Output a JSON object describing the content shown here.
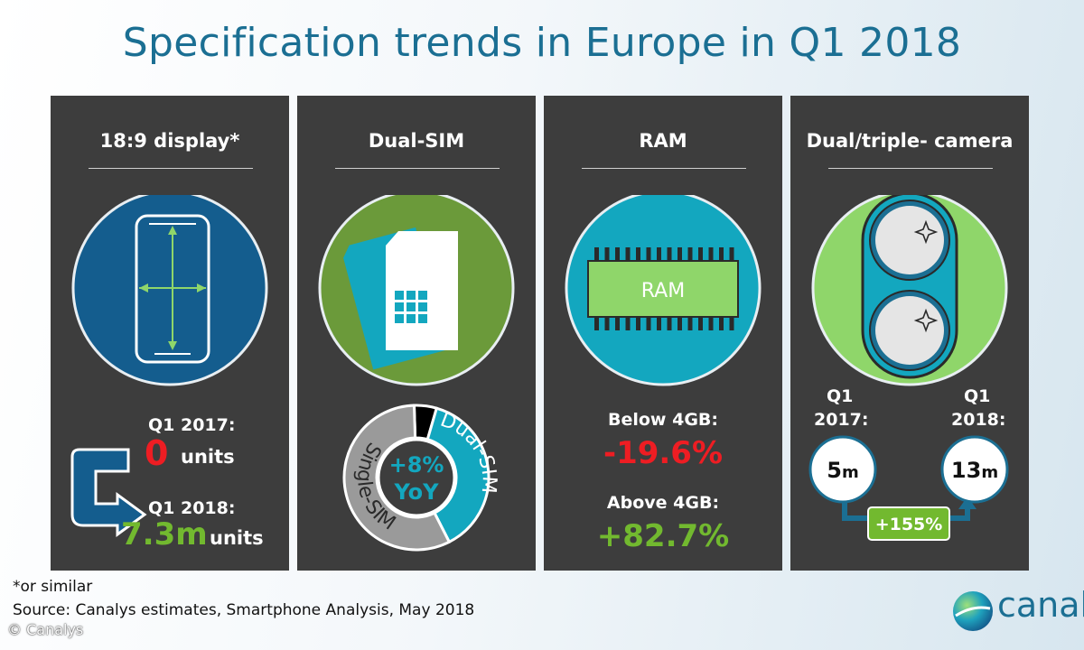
{
  "title": "Specification trends in Europe in Q1 2018",
  "colors": {
    "title": "#1b6f93",
    "panel": "#3d3d3d",
    "red": "#ee1d23",
    "green": "#72b92f",
    "teal": "#13a7bf",
    "navy": "#145d8e",
    "olive": "#6b9a3a",
    "light_green": "#8fd66a"
  },
  "panels": {
    "display": {
      "title": "18:9 display*",
      "icon": "smartphone-icon",
      "q1_2017_label": "Q1 2017:",
      "q1_2017_value": "0",
      "q1_2017_unit": "units",
      "q1_2018_label": "Q1 2018:",
      "q1_2018_value": "7.3m",
      "q1_2018_unit": "units"
    },
    "dual_sim": {
      "title": "Dual-SIM",
      "icon": "sim-card-icon",
      "center_line1": "+8%",
      "center_line2": "YoY"
    },
    "ram": {
      "title": "RAM",
      "chip_label": "RAM",
      "icon": "memory-chip-icon",
      "below_label": "Below 4GB:",
      "below_value": "-19.6%",
      "above_label": "Above 4GB:",
      "above_value": "+82.7%"
    },
    "camera": {
      "title": "Dual/triple- camera",
      "icon": "dual-camera-icon",
      "q1_2017_label_1": "Q1",
      "q1_2017_label_2": "2017:",
      "q1_2018_label_1": "Q1",
      "q1_2018_label_2": "2018:",
      "q1_2017_value": "5",
      "q1_2017_unit": "m",
      "q1_2018_value": "13",
      "q1_2018_unit": "m",
      "growth": "+155%"
    }
  },
  "chart_data": {
    "type": "pie",
    "title": "",
    "series": [
      {
        "name": "Dual-SIM",
        "value": 38,
        "color": "#13a7bf"
      },
      {
        "name": "Single-SIM",
        "value": 57,
        "color": "#9a9a9a"
      },
      {
        "name": "",
        "value": 5,
        "color": "#000000"
      }
    ]
  },
  "footer": {
    "note": "*or similar",
    "source": "Source: Canalys estimates, Smartphone Analysis, May 2018",
    "copyright": "© Canalys",
    "logo_text": "canaly"
  }
}
